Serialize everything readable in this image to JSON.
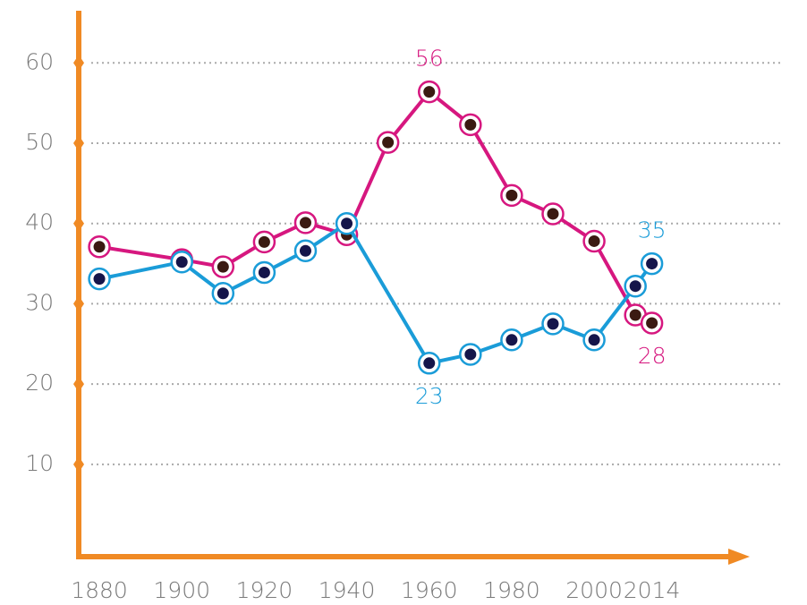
{
  "chart_data": {
    "type": "line",
    "series": [
      {
        "color": "#d6177f",
        "marker_color": "#3b1a12",
        "x": [
          1880,
          1900,
          1910,
          1920,
          1930,
          1940,
          1950,
          1960,
          1970,
          1980,
          1990,
          2000,
          2010,
          2014
        ],
        "values": [
          37.1,
          35.5,
          34.6,
          37.7,
          40.1,
          38.6,
          50.1,
          56.4,
          52.3,
          43.5,
          41.2,
          37.8,
          28.6,
          27.6
        ],
        "value_labels": [
          null,
          null,
          null,
          null,
          null,
          null,
          null,
          "56",
          null,
          null,
          null,
          null,
          null,
          "28"
        ]
      },
      {
        "color": "#1a9cd8",
        "marker_color": "#15154a",
        "x": [
          1880,
          1900,
          1910,
          1920,
          1930,
          1940,
          1960,
          1970,
          1980,
          1990,
          2000,
          2010,
          2014
        ],
        "values": [
          33.1,
          35.2,
          31.3,
          33.9,
          36.6,
          40.0,
          22.6,
          23.7,
          25.5,
          27.5,
          25.5,
          32.2,
          35
        ],
        "value_labels": [
          null,
          null,
          null,
          null,
          null,
          null,
          "23",
          null,
          null,
          null,
          null,
          null,
          "35"
        ]
      }
    ],
    "xlim": [
      1875,
      2036
    ],
    "xticks": [
      1880,
      1900,
      1920,
      1940,
      1960,
      1980,
      2000,
      2014
    ],
    "ylim": [
      -1.5,
      66.5
    ],
    "yticks": [
      10,
      20,
      30,
      40,
      50,
      60
    ],
    "grid": true,
    "axis_color": "#f08a24"
  }
}
